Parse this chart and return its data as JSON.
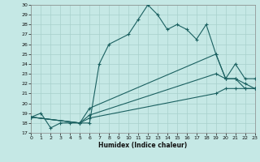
{
  "xlabel": "Humidex (Indice chaleur)",
  "bg_color": "#c5e8e5",
  "grid_color": "#a8d0cc",
  "line_color": "#1a6060",
  "xlim": [
    0,
    23
  ],
  "ylim": [
    17,
    30
  ],
  "xticks": [
    0,
    1,
    2,
    3,
    4,
    5,
    6,
    7,
    8,
    9,
    10,
    11,
    12,
    13,
    14,
    15,
    16,
    17,
    18,
    19,
    20,
    21,
    22,
    23
  ],
  "yticks": [
    17,
    18,
    19,
    20,
    21,
    22,
    23,
    24,
    25,
    26,
    27,
    28,
    29,
    30
  ],
  "line1_x": [
    0,
    1,
    2,
    3,
    4,
    5,
    6,
    7,
    8,
    10,
    11,
    12,
    13,
    14,
    15,
    16,
    17,
    18,
    19,
    20,
    21,
    22,
    23
  ],
  "line1_y": [
    18.6,
    19.0,
    17.5,
    18.0,
    18.0,
    18.0,
    18.0,
    24.0,
    26.0,
    27.0,
    28.5,
    30.0,
    29.0,
    27.5,
    28.0,
    27.5,
    26.5,
    28.0,
    25.0,
    22.5,
    22.5,
    21.5,
    21.5
  ],
  "line2_x": [
    0,
    5,
    6,
    19,
    20,
    21,
    22,
    23
  ],
  "line2_y": [
    18.6,
    18.0,
    19.5,
    25.0,
    22.5,
    24.0,
    22.5,
    22.5
  ],
  "line3_x": [
    0,
    5,
    6,
    19,
    20,
    21,
    22,
    23
  ],
  "line3_y": [
    18.6,
    18.0,
    18.8,
    23.0,
    22.5,
    22.5,
    22.0,
    21.5
  ],
  "line4_x": [
    0,
    5,
    6,
    19,
    20,
    21,
    22,
    23
  ],
  "line4_y": [
    18.6,
    18.0,
    18.5,
    21.0,
    21.5,
    21.5,
    21.5,
    21.5
  ]
}
